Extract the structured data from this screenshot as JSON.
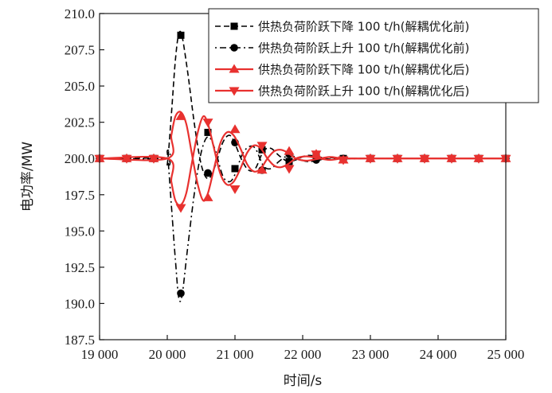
{
  "chart_data": {
    "type": "line",
    "xlabel": "时间/s",
    "ylabel": "电功率/MW",
    "xlim": [
      19000,
      25000
    ],
    "ylim": [
      187.5,
      210.0
    ],
    "x_ticks": [
      19000,
      20000,
      21000,
      22000,
      23000,
      24000,
      25000
    ],
    "x_tick_labels": [
      "19 000",
      "20 000",
      "21 000",
      "22 000",
      "23 000",
      "24 000",
      "25 000"
    ],
    "y_ticks": [
      187.5,
      190.0,
      192.5,
      195.0,
      197.5,
      200.0,
      202.5,
      205.0,
      207.5,
      210.0
    ],
    "y_tick_labels": [
      "187.5",
      "190.0",
      "192.5",
      "195.0",
      "197.5",
      "200.0",
      "202.5",
      "205.0",
      "207.5",
      "210.0"
    ],
    "grid": false,
    "legend_position": "top-right",
    "series": [
      {
        "name": "供热负荷阶跃下降 100 t/h(解耦优化前)",
        "color": "#000000",
        "line": "dashed",
        "marker": "square",
        "line_points": [
          [
            19000,
            200.0
          ],
          [
            19960,
            200.0
          ],
          [
            20000,
            199.6
          ],
          [
            20060,
            203.0
          ],
          [
            20120,
            206.8
          ],
          [
            20170,
            208.6
          ],
          [
            20220,
            208.4
          ],
          [
            20300,
            206.0
          ],
          [
            20400,
            202.4
          ],
          [
            20500,
            199.6
          ],
          [
            20600,
            198.6
          ],
          [
            20700,
            199.4
          ],
          [
            20820,
            201.1
          ],
          [
            20920,
            201.6
          ],
          [
            21000,
            201.0
          ],
          [
            21100,
            199.9
          ],
          [
            21200,
            199.2
          ],
          [
            21300,
            199.3
          ],
          [
            21420,
            200.5
          ],
          [
            21530,
            200.7
          ],
          [
            21650,
            200.2
          ],
          [
            21780,
            199.8
          ],
          [
            21900,
            199.9
          ],
          [
            22050,
            200.2
          ],
          [
            22200,
            200.15
          ],
          [
            22400,
            199.95
          ],
          [
            22600,
            200.03
          ],
          [
            23000,
            200.0
          ],
          [
            25000,
            200.0
          ]
        ],
        "markers": [
          [
            19000,
            200.0
          ],
          [
            19400,
            200.0
          ],
          [
            19800,
            200.0
          ],
          [
            20200,
            208.5
          ],
          [
            20600,
            201.8
          ],
          [
            21000,
            199.3
          ],
          [
            21400,
            200.6
          ],
          [
            21800,
            199.8
          ],
          [
            22200,
            200.1
          ],
          [
            22600,
            200.0
          ],
          [
            23000,
            200.0
          ],
          [
            23400,
            200.0
          ],
          [
            23800,
            200.0
          ],
          [
            24200,
            200.0
          ],
          [
            24600,
            200.0
          ],
          [
            25000,
            200.0
          ]
        ]
      },
      {
        "name": "供热负荷阶跃上升 100 t/h(解耦优化前)",
        "color": "#000000",
        "line": "dashdot",
        "marker": "circle",
        "line_points": [
          [
            19000,
            200.0
          ],
          [
            19960,
            200.0
          ],
          [
            20000,
            200.4
          ],
          [
            20060,
            196.8
          ],
          [
            20120,
            193.0
          ],
          [
            20170,
            190.4
          ],
          [
            20220,
            190.6
          ],
          [
            20300,
            193.8
          ],
          [
            20400,
            197.6
          ],
          [
            20500,
            200.4
          ],
          [
            20600,
            201.5
          ],
          [
            20700,
            200.7
          ],
          [
            20820,
            198.8
          ],
          [
            20920,
            198.4
          ],
          [
            21000,
            198.9
          ],
          [
            21100,
            200.2
          ],
          [
            21200,
            200.8
          ],
          [
            21300,
            200.7
          ],
          [
            21420,
            199.5
          ],
          [
            21530,
            199.3
          ],
          [
            21650,
            199.8
          ],
          [
            21780,
            200.2
          ],
          [
            21900,
            200.1
          ],
          [
            22050,
            199.8
          ],
          [
            22200,
            199.85
          ],
          [
            22400,
            200.05
          ],
          [
            22600,
            199.97
          ],
          [
            23000,
            200.0
          ],
          [
            25000,
            200.0
          ]
        ],
        "markers": [
          [
            19000,
            200.0
          ],
          [
            19400,
            200.0
          ],
          [
            19800,
            200.0
          ],
          [
            20200,
            190.7
          ],
          [
            20600,
            199.0
          ],
          [
            21000,
            201.1
          ],
          [
            21400,
            199.2
          ],
          [
            21800,
            200.3
          ],
          [
            22200,
            199.9
          ],
          [
            22600,
            200.0
          ],
          [
            23000,
            200.0
          ],
          [
            23400,
            200.0
          ],
          [
            23800,
            200.0
          ],
          [
            24200,
            200.0
          ],
          [
            24600,
            200.0
          ],
          [
            25000,
            200.0
          ]
        ]
      },
      {
        "name": "供热负荷阶跃下降 100 t/h(解耦优化后)",
        "color": "#e8312f",
        "line": "solid",
        "marker": "triangle-up",
        "line_points": [
          [
            19000,
            200.0
          ],
          [
            20000,
            200.0
          ],
          [
            20060,
            201.6
          ],
          [
            20120,
            202.9
          ],
          [
            20200,
            203.2
          ],
          [
            20280,
            202.4
          ],
          [
            20360,
            200.4
          ],
          [
            20450,
            198.2
          ],
          [
            20530,
            197.1
          ],
          [
            20600,
            197.6
          ],
          [
            20680,
            199.1
          ],
          [
            20780,
            201.0
          ],
          [
            20880,
            201.8
          ],
          [
            20980,
            201.6
          ],
          [
            21080,
            200.7
          ],
          [
            21180,
            199.6
          ],
          [
            21280,
            199.1
          ],
          [
            21380,
            199.3
          ],
          [
            21480,
            200.0
          ],
          [
            21580,
            200.5
          ],
          [
            21680,
            200.6
          ],
          [
            21780,
            200.4
          ],
          [
            21900,
            200.0
          ],
          [
            22050,
            199.85
          ],
          [
            22200,
            199.95
          ],
          [
            22400,
            200.1
          ],
          [
            22600,
            200.0
          ],
          [
            23000,
            200.0
          ],
          [
            25000,
            200.0
          ]
        ],
        "markers": [
          [
            19000,
            200.0
          ],
          [
            19400,
            200.0
          ],
          [
            19800,
            200.0
          ],
          [
            20200,
            202.9
          ],
          [
            20600,
            197.3
          ],
          [
            21000,
            202.0
          ],
          [
            21400,
            199.2
          ],
          [
            21800,
            200.5
          ],
          [
            22200,
            200.3
          ],
          [
            22600,
            199.9
          ],
          [
            23000,
            200.0
          ],
          [
            23400,
            200.0
          ],
          [
            23800,
            200.0
          ],
          [
            24200,
            200.0
          ],
          [
            24600,
            200.0
          ],
          [
            25000,
            200.0
          ]
        ]
      },
      {
        "name": "供热负荷阶跃上升 100 t/h(解耦优化后)",
        "color": "#e8312f",
        "line": "solid",
        "marker": "triangle-down",
        "line_points": [
          [
            19000,
            200.0
          ],
          [
            20000,
            200.0
          ],
          [
            20060,
            198.4
          ],
          [
            20120,
            197.1
          ],
          [
            20200,
            196.8
          ],
          [
            20280,
            197.6
          ],
          [
            20360,
            199.6
          ],
          [
            20450,
            201.8
          ],
          [
            20530,
            202.9
          ],
          [
            20600,
            202.4
          ],
          [
            20680,
            200.9
          ],
          [
            20780,
            199.0
          ],
          [
            20880,
            198.2
          ],
          [
            20980,
            198.4
          ],
          [
            21080,
            199.3
          ],
          [
            21180,
            200.4
          ],
          [
            21280,
            200.9
          ],
          [
            21380,
            200.7
          ],
          [
            21480,
            200.0
          ],
          [
            21580,
            199.5
          ],
          [
            21680,
            199.4
          ],
          [
            21780,
            199.6
          ],
          [
            21900,
            200.0
          ],
          [
            22050,
            200.15
          ],
          [
            22200,
            200.05
          ],
          [
            22400,
            199.9
          ],
          [
            22600,
            200.0
          ],
          [
            23000,
            200.0
          ],
          [
            25000,
            200.0
          ]
        ],
        "markers": [
          [
            19000,
            200.0
          ],
          [
            19400,
            200.0
          ],
          [
            19800,
            200.0
          ],
          [
            20200,
            196.6
          ],
          [
            20600,
            202.5
          ],
          [
            21000,
            197.9
          ],
          [
            21400,
            200.9
          ],
          [
            21800,
            199.3
          ],
          [
            22200,
            200.3
          ],
          [
            22600,
            199.9
          ],
          [
            23000,
            200.0
          ],
          [
            23400,
            200.0
          ],
          [
            23800,
            200.0
          ],
          [
            24200,
            200.0
          ],
          [
            24600,
            200.0
          ],
          [
            25000,
            200.0
          ]
        ]
      }
    ]
  }
}
